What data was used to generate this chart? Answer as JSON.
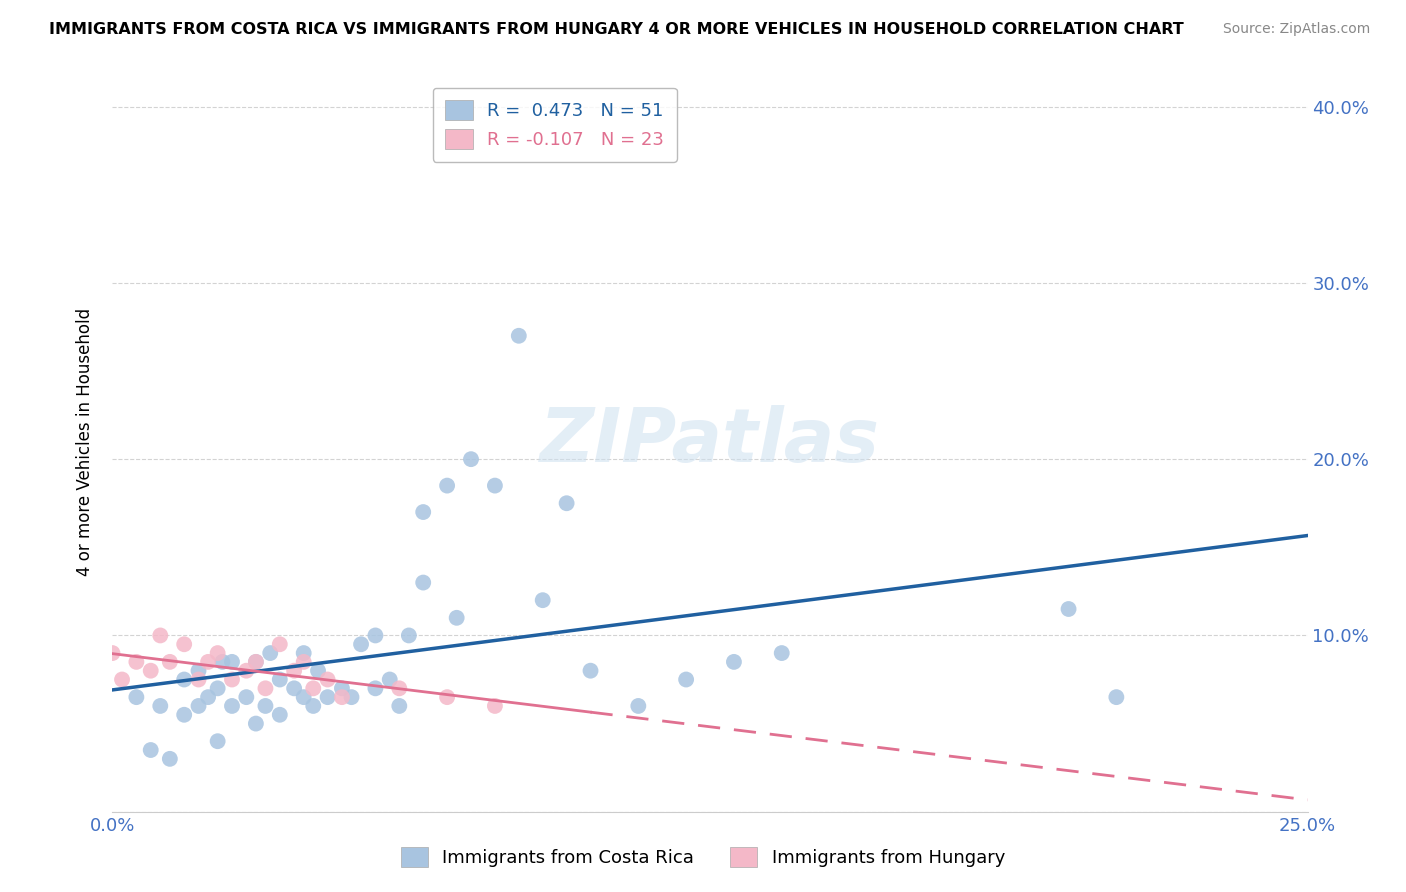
{
  "title": "IMMIGRANTS FROM COSTA RICA VS IMMIGRANTS FROM HUNGARY 4 OR MORE VEHICLES IN HOUSEHOLD CORRELATION CHART",
  "source": "Source: ZipAtlas.com",
  "ylabel": "4 or more Vehicles in Household",
  "xlim": [
    0.0,
    0.25
  ],
  "ylim": [
    0.0,
    0.42
  ],
  "x_ticks": [
    0.0,
    0.05,
    0.1,
    0.15,
    0.2,
    0.25
  ],
  "y_ticks": [
    0.0,
    0.1,
    0.2,
    0.3,
    0.4
  ],
  "costa_rica_R": 0.473,
  "costa_rica_N": 51,
  "hungary_R": -0.107,
  "hungary_N": 23,
  "costa_rica_color": "#a8c4e0",
  "hungary_color": "#f4b8c8",
  "costa_rica_line_color": "#2060a0",
  "hungary_line_color": "#e07090",
  "watermark": "ZIPatlas",
  "costa_rica_x": [
    0.005,
    0.008,
    0.01,
    0.012,
    0.015,
    0.015,
    0.018,
    0.018,
    0.02,
    0.022,
    0.022,
    0.023,
    0.025,
    0.025,
    0.028,
    0.03,
    0.03,
    0.032,
    0.033,
    0.035,
    0.035,
    0.038,
    0.04,
    0.04,
    0.042,
    0.043,
    0.045,
    0.048,
    0.05,
    0.052,
    0.055,
    0.055,
    0.058,
    0.06,
    0.062,
    0.065,
    0.065,
    0.07,
    0.072,
    0.075,
    0.08,
    0.085,
    0.09,
    0.095,
    0.1,
    0.11,
    0.12,
    0.13,
    0.14,
    0.2,
    0.21
  ],
  "costa_rica_y": [
    0.065,
    0.035,
    0.06,
    0.03,
    0.055,
    0.075,
    0.06,
    0.08,
    0.065,
    0.04,
    0.07,
    0.085,
    0.06,
    0.085,
    0.065,
    0.05,
    0.085,
    0.06,
    0.09,
    0.055,
    0.075,
    0.07,
    0.065,
    0.09,
    0.06,
    0.08,
    0.065,
    0.07,
    0.065,
    0.095,
    0.07,
    0.1,
    0.075,
    0.06,
    0.1,
    0.13,
    0.17,
    0.185,
    0.11,
    0.2,
    0.185,
    0.27,
    0.12,
    0.175,
    0.08,
    0.06,
    0.075,
    0.085,
    0.09,
    0.115,
    0.065
  ],
  "hungary_x": [
    0.0,
    0.002,
    0.005,
    0.008,
    0.01,
    0.012,
    0.015,
    0.018,
    0.02,
    0.022,
    0.025,
    0.028,
    0.03,
    0.032,
    0.035,
    0.038,
    0.04,
    0.042,
    0.045,
    0.048,
    0.06,
    0.07,
    0.08
  ],
  "hungary_y": [
    0.09,
    0.075,
    0.085,
    0.08,
    0.1,
    0.085,
    0.095,
    0.075,
    0.085,
    0.09,
    0.075,
    0.08,
    0.085,
    0.07,
    0.095,
    0.08,
    0.085,
    0.07,
    0.075,
    0.065,
    0.07,
    0.065,
    0.06
  ]
}
